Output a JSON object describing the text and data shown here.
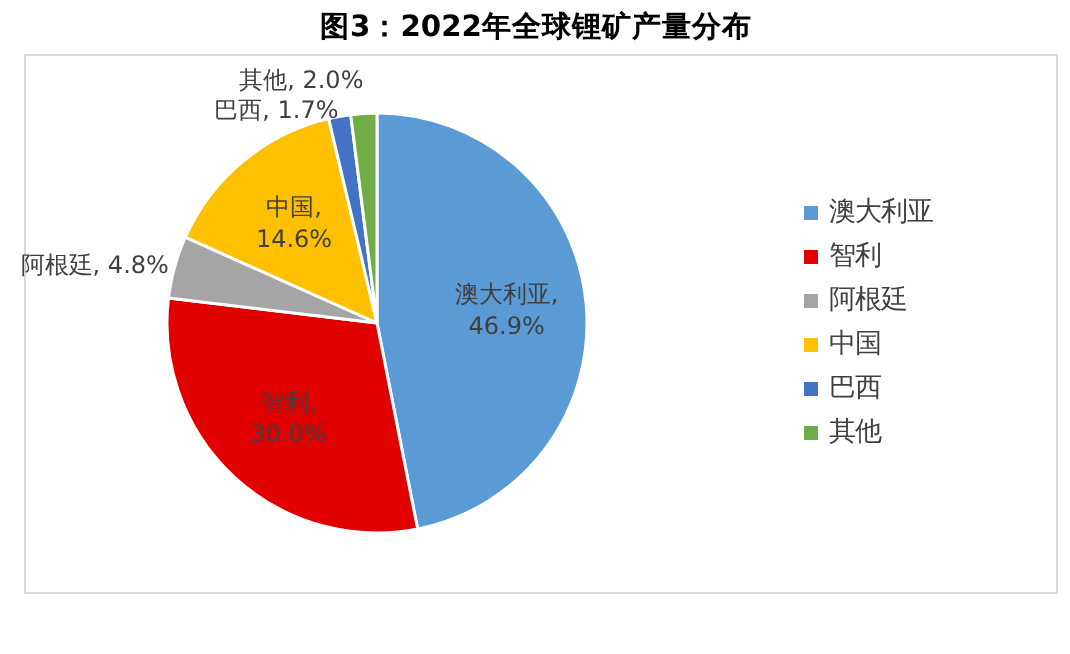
{
  "chart_data": {
    "type": "pie",
    "title": "图3：2022年全球锂矿产量分布",
    "categories": [
      "澳大利亚",
      "智利",
      "阿根廷",
      "中国",
      "巴西",
      "其他"
    ],
    "values": [
      46.9,
      30.0,
      4.8,
      14.6,
      1.7,
      2.0
    ],
    "colors": [
      "#5b9bd5",
      "#e00000",
      "#a5a5a5",
      "#ffc000",
      "#4472c4",
      "#70ad47"
    ],
    "value_labels": [
      "澳大利亚, 46.9%",
      "智利, 30.0%",
      "阿根廷, 4.8%",
      "中国, 14.6%",
      "巴西, 1.7%",
      "其他, 2.0%"
    ],
    "legend": "right"
  }
}
